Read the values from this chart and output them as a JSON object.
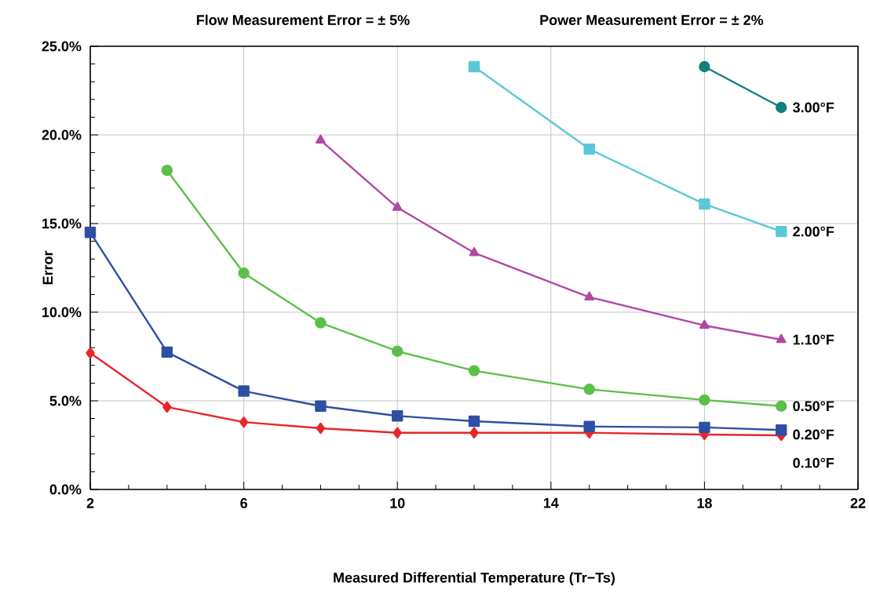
{
  "chart_data": {
    "type": "line",
    "annotations": [
      "Flow Measurement Error = ± 5%",
      "Power Measurement Error = ± 2%"
    ],
    "xlabel": "Measured Differential Temperature (Tr−Ts)",
    "ylabel": "Error",
    "x": [
      2,
      4,
      6,
      8,
      10,
      12,
      15,
      18,
      20
    ],
    "series": [
      {
        "name": "0.10°F",
        "color": "#e8262a",
        "marker": "diamond",
        "values": [
          7.7,
          4.65,
          3.8,
          3.45,
          3.2,
          3.2,
          3.2,
          3.1,
          3.05
        ]
      },
      {
        "name": "0.20°F",
        "color": "#2e4fa3",
        "marker": "square",
        "values": [
          14.5,
          7.75,
          5.55,
          4.7,
          4.15,
          3.85,
          3.55,
          3.5,
          3.35
        ]
      },
      {
        "name": "0.50°F",
        "color": "#5cbf4a",
        "marker": "circle",
        "values": [
          null,
          18.0,
          12.2,
          9.4,
          7.8,
          6.7,
          5.65,
          5.05,
          4.7
        ]
      },
      {
        "name": "1.10°F",
        "color": "#b048a8",
        "marker": "triangle",
        "values": [
          null,
          null,
          null,
          19.7,
          15.9,
          13.35,
          10.85,
          9.25,
          8.45
        ]
      },
      {
        "name": "2.00°F",
        "color": "#5bc8d6",
        "marker": "square",
        "values": [
          null,
          null,
          null,
          null,
          null,
          23.85,
          19.2,
          16.1,
          14.55
        ]
      },
      {
        "name": "3.00°F",
        "color": "#137f7f",
        "marker": "circle",
        "values": [
          null,
          null,
          null,
          null,
          null,
          null,
          null,
          23.85,
          21.55
        ]
      }
    ],
    "xlim": [
      2,
      22
    ],
    "xticks": [
      2,
      6,
      10,
      14,
      18,
      22
    ],
    "ylim": [
      0,
      25
    ],
    "yticks": [
      {
        "value": 0,
        "label": "0.0%"
      },
      {
        "value": 5,
        "label": "5.0%"
      },
      {
        "value": 10,
        "label": "10.0%"
      },
      {
        "value": 15,
        "label": "15.0%"
      },
      {
        "value": 20,
        "label": "20.0%"
      },
      {
        "value": 25,
        "label": "25.0%"
      }
    ],
    "grid": true,
    "line_style": "solid"
  }
}
